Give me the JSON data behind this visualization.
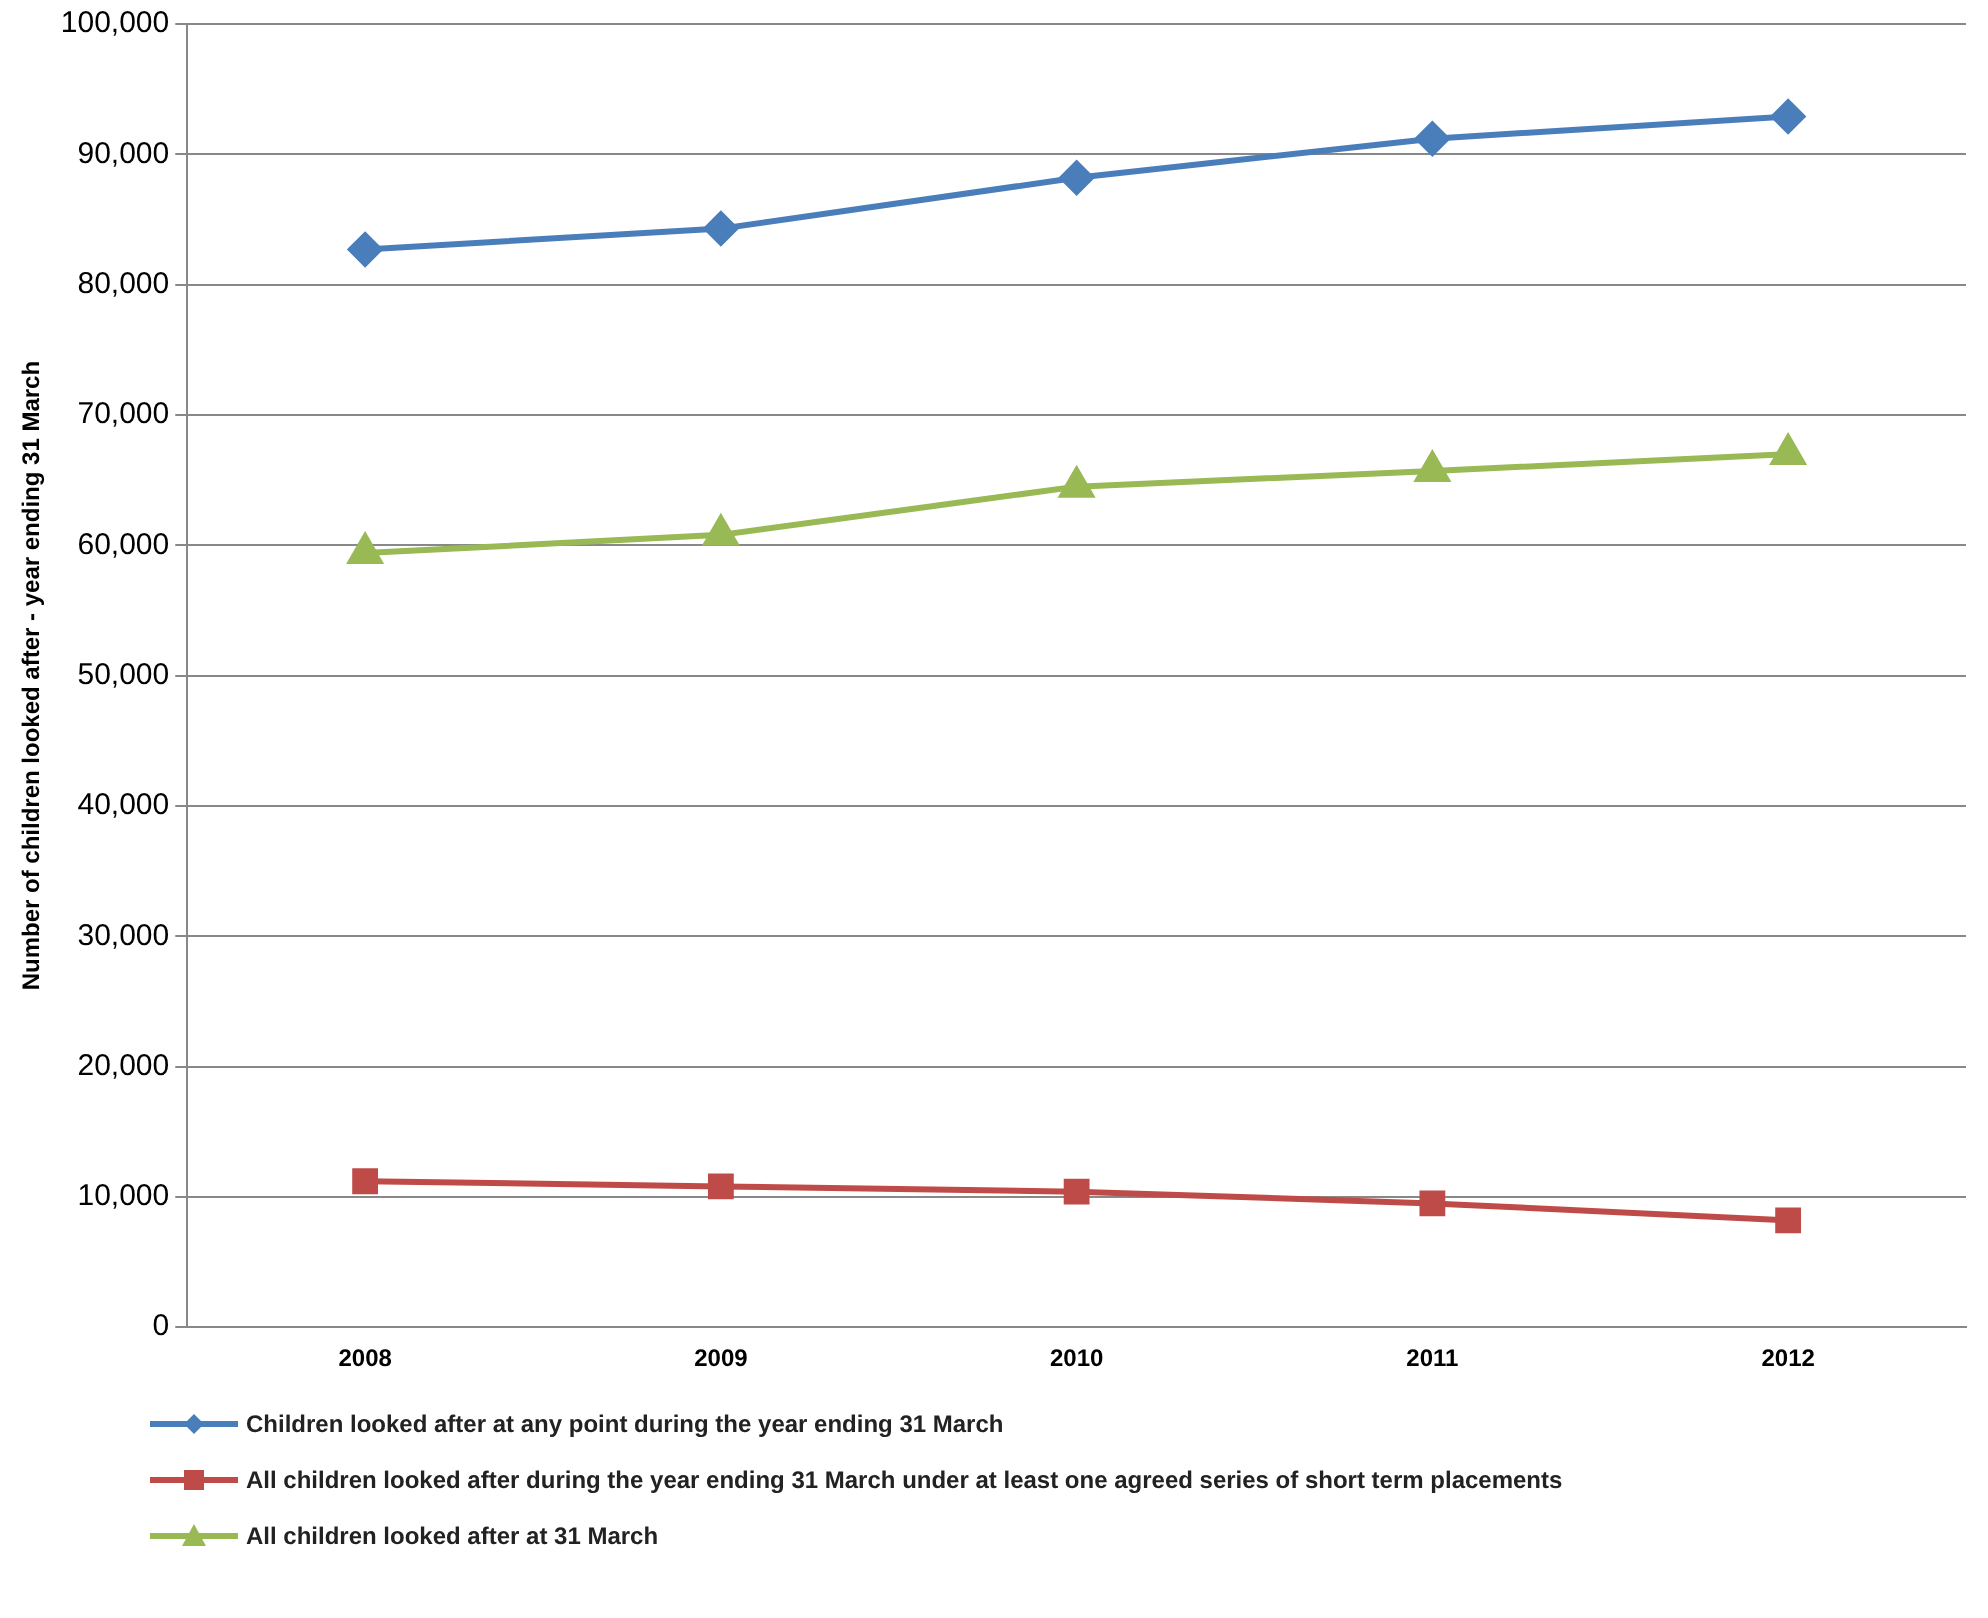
{
  "chart_data": {
    "type": "line",
    "ylabel": "Number of children looked after - year ending 31 March",
    "categories": [
      "2008",
      "2009",
      "2010",
      "2011",
      "2012"
    ],
    "series": [
      {
        "name": "Children looked after at any point during the year ending 31 March",
        "color": "#4a7ebb",
        "marker": "diamond",
        "values": [
          82700,
          84300,
          88200,
          91200,
          92900
        ]
      },
      {
        "name": "All children looked after during the year ending 31 March under at least one agreed series of short term placements",
        "color": "#be4b48",
        "marker": "square",
        "values": [
          11200,
          10800,
          10400,
          9500,
          8200
        ]
      },
      {
        "name": "All children looked after at 31 March",
        "color": "#98b954",
        "marker": "triangle",
        "values": [
          59400,
          60800,
          64500,
          65700,
          67000
        ]
      }
    ],
    "ylim": [
      0,
      100000
    ],
    "yticks": [
      0,
      {
        "value": 10000,
        "label": "10,000"
      },
      {
        "value": 20000,
        "label": "20,000"
      },
      {
        "value": 30000,
        "label": "30,000"
      },
      {
        "value": 40000,
        "label": "40,000"
      },
      {
        "value": 50000,
        "label": "50,000"
      },
      {
        "value": 60000,
        "label": "60,000"
      },
      {
        "value": 70000,
        "label": "70,000"
      },
      {
        "value": 80000,
        "label": "80,000"
      },
      {
        "value": 90000,
        "label": "90,000"
      },
      {
        "value": 100000,
        "label": "100,000"
      }
    ],
    "grid": "y",
    "legend": "bottom",
    "line_style": "solid"
  }
}
